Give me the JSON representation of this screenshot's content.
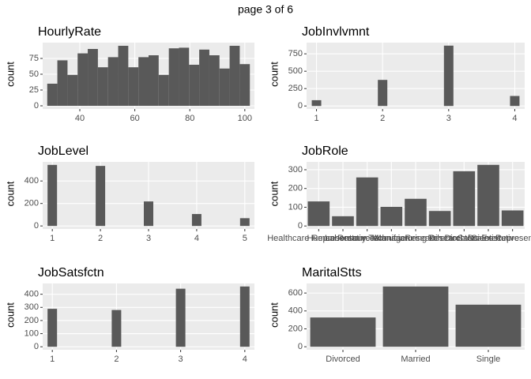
{
  "title": "page 3 of 6",
  "chart_data": [
    {
      "type": "histogram",
      "title": "HourlyRate",
      "ylabel": "count",
      "bins": [
        28.16,
        31.84,
        35.53,
        39.21,
        42.89,
        46.58,
        50.26,
        53.95,
        57.63,
        61.32,
        65.0,
        68.68,
        72.37,
        76.05,
        79.74,
        83.42,
        87.11,
        90.79,
        94.47,
        98.16,
        101.84
      ],
      "values": [
        35,
        72,
        49,
        83,
        90,
        61,
        77,
        95,
        61,
        77,
        80,
        49,
        91,
        92,
        65,
        89,
        80,
        59,
        95,
        66
      ],
      "color": "#595959",
      "xlim": [
        26.5,
        103.5
      ],
      "xticks": [
        40,
        60,
        80,
        100
      ],
      "ylim": [
        -5,
        100
      ],
      "yticks": [
        0,
        25,
        50,
        75
      ],
      "grid": true
    },
    {
      "type": "bar",
      "title": "JobInvlvmnt",
      "ylabel": "count",
      "x": [
        1,
        2,
        3,
        4
      ],
      "values": [
        83,
        375,
        868,
        144
      ],
      "color": "#595959",
      "xlim": [
        0.85,
        4.15
      ],
      "xticks": [
        1,
        2,
        3,
        4
      ],
      "ylim": [
        -43,
        911
      ],
      "yticks": [
        0,
        250,
        500,
        750
      ],
      "grid": true
    },
    {
      "type": "bar",
      "title": "JobLevel",
      "ylabel": "count",
      "x": [
        1,
        2,
        3,
        4,
        5
      ],
      "values": [
        543,
        534,
        218,
        106,
        69
      ],
      "color": "#595959",
      "xlim": [
        0.8,
        5.2
      ],
      "xticks": [
        1,
        2,
        3,
        4,
        5
      ],
      "ylim": [
        -27,
        570
      ],
      "yticks": [
        0,
        200,
        400
      ],
      "grid": true
    },
    {
      "type": "bar",
      "title": "JobRole",
      "ylabel": "count",
      "categories": [
        "Healthcare Representative",
        "Human Resources",
        "Laboratory Technician",
        "Manager",
        "Manufacturing Director",
        "Research Director",
        "Research Scientist",
        "Sales Executive",
        "Sales Representative"
      ],
      "values": [
        131,
        52,
        259,
        102,
        145,
        80,
        292,
        326,
        83
      ],
      "color": "#595959",
      "ylim": [
        -16,
        342
      ],
      "yticks": [
        0,
        100,
        200,
        300
      ],
      "grid": true
    },
    {
      "type": "bar",
      "title": "JobSatsfctn",
      "ylabel": "count",
      "x": [
        1,
        2,
        3,
        4
      ],
      "values": [
        289,
        280,
        442,
        459
      ],
      "color": "#595959",
      "xlim": [
        0.85,
        4.15
      ],
      "xticks": [
        1,
        2,
        3,
        4
      ],
      "ylim": [
        -23,
        482
      ],
      "yticks": [
        0,
        100,
        200,
        300,
        400
      ],
      "grid": true
    },
    {
      "type": "bar",
      "title": "MaritalStts",
      "ylabel": "count",
      "categories": [
        "Divorced",
        "Married",
        "Single"
      ],
      "values": [
        327,
        673,
        470
      ],
      "color": "#595959",
      "ylim": [
        -34,
        707
      ],
      "yticks": [
        0,
        200,
        400,
        600
      ],
      "grid": true
    }
  ]
}
